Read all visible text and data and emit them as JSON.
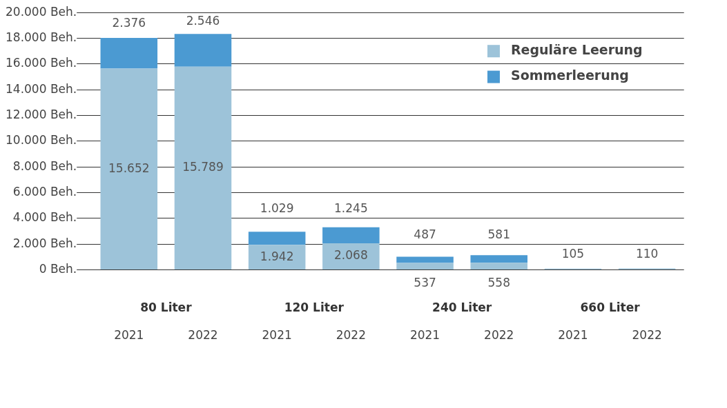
{
  "chart_data": {
    "type": "bar",
    "stacked": true,
    "categories": [
      "2021",
      "2022",
      "2021",
      "2022",
      "2021",
      "2022",
      "2021",
      "2022"
    ],
    "series": [
      {
        "name": "Reguläre Leerung",
        "color": "#9dc3d9",
        "values": [
          15652,
          15789,
          1942,
          2068,
          537,
          558,
          105,
          110
        ],
        "value_labels": [
          "15.652",
          "15.789",
          "1.942",
          "2.068",
          "537",
          "558",
          "105",
          "110"
        ]
      },
      {
        "name": "Sommerleerung",
        "color": "#4b9ad2",
        "values": [
          2376,
          2546,
          1029,
          1245,
          487,
          581,
          null,
          null
        ],
        "value_labels": [
          "2.376",
          "2.546",
          "1.029",
          "1.245",
          "487",
          "581",
          null,
          null
        ]
      }
    ],
    "annotations": [
      "80 Liter",
      "120 Liter",
      "240 Liter",
      "660 Liter"
    ],
    "ylim": [
      0,
      20000
    ],
    "yticks": [
      {
        "value": 0,
        "label": "0 Beh."
      },
      {
        "value": 2000,
        "label": "2.000 Beh."
      },
      {
        "value": 4000,
        "label": "4.000 Beh."
      },
      {
        "value": 6000,
        "label": "6.000 Beh."
      },
      {
        "value": 8000,
        "label": "8.000 Beh."
      },
      {
        "value": 10000,
        "label": "10.000 Beh."
      },
      {
        "value": 12000,
        "label": "12.000 Beh."
      },
      {
        "value": 14000,
        "label": "14.000 Beh."
      },
      {
        "value": 16000,
        "label": "16.000 Beh."
      },
      {
        "value": 18000,
        "label": "18.000 Beh."
      },
      {
        "value": 20000,
        "label": "20.000 Beh."
      }
    ],
    "grid": "y",
    "legend": "top right"
  }
}
